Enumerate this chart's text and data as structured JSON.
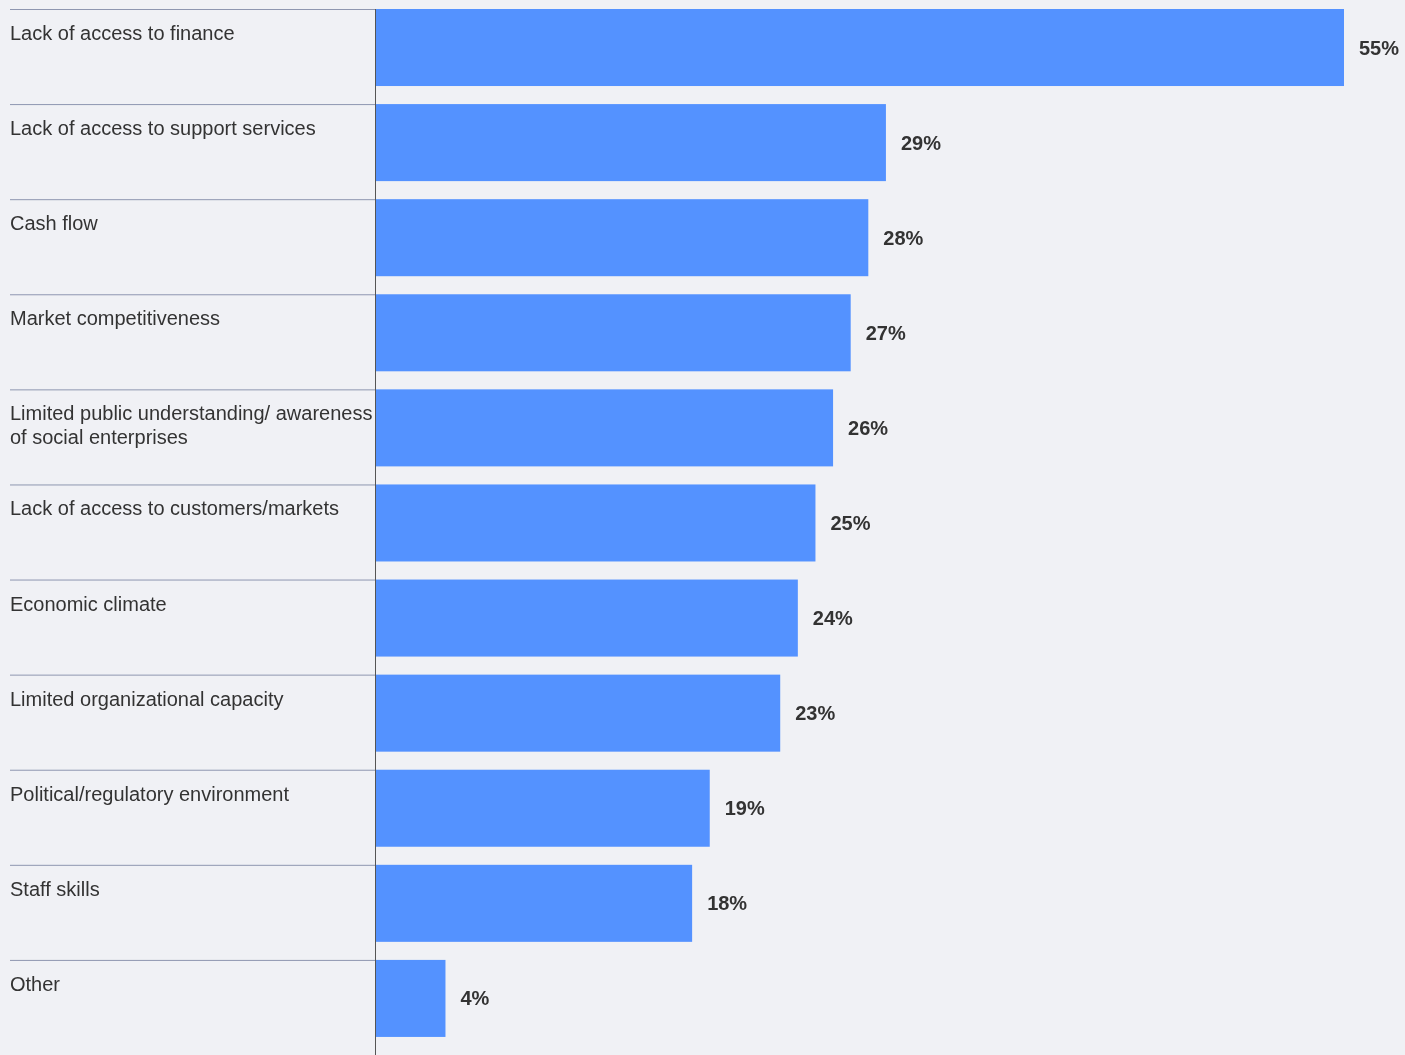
{
  "chart_data": {
    "type": "bar",
    "orientation": "horizontal",
    "categories": [
      "Lack of access to finance",
      "Lack of access to support services",
      "Cash flow",
      "Market competitiveness",
      "Limited public understanding/ awareness of social enterprises",
      "Lack of access to customers/markets",
      "Economic climate",
      "Limited organizational capacity",
      "Political/regulatory environment",
      "Staff skills",
      "Other"
    ],
    "values": [
      55,
      29,
      28,
      27,
      26,
      25,
      24,
      23,
      19,
      18,
      4
    ],
    "value_labels": [
      "55%",
      "29%",
      "28%",
      "27%",
      "26%",
      "25%",
      "24%",
      "23%",
      "19%",
      "18%",
      "4%"
    ],
    "color": "#5492ff"
  }
}
